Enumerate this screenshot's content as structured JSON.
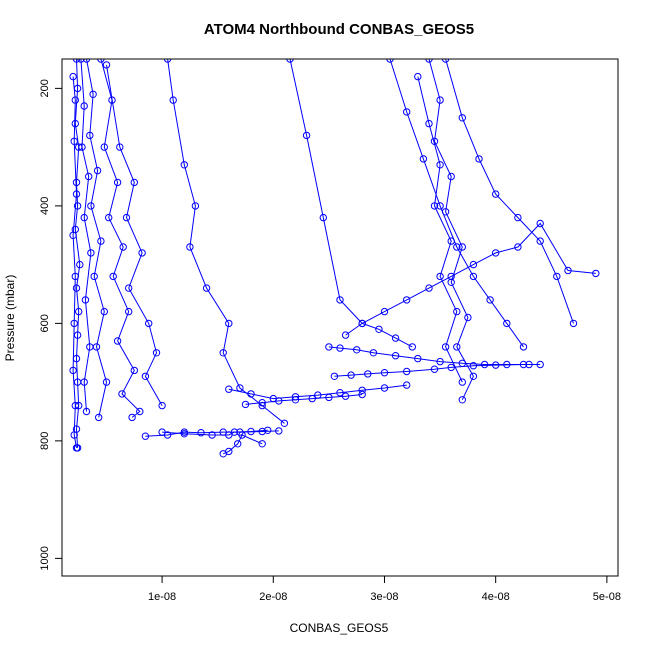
{
  "chart_data": {
    "type": "line",
    "title": "ATOM4 Northbound CONBAS_GEOS5",
    "xlabel": "CONBAS_GEOS5",
    "ylabel": "Pressure (mbar)",
    "xlim": [
      1e-09,
      5.1e-08
    ],
    "ylim": [
      1030,
      150
    ],
    "y_reversed": true,
    "x_ticks": [
      {
        "value": 1e-08,
        "label": "1e-08"
      },
      {
        "value": 2e-08,
        "label": "2e-08"
      },
      {
        "value": 3e-08,
        "label": "3e-08"
      },
      {
        "value": 4e-08,
        "label": "4e-08"
      },
      {
        "value": 5e-08,
        "label": "5e-08"
      }
    ],
    "y_ticks": [
      {
        "value": 200,
        "label": "200"
      },
      {
        "value": 400,
        "label": "400"
      },
      {
        "value": 600,
        "label": "600"
      },
      {
        "value": 800,
        "label": "800"
      },
      {
        "value": 1000,
        "label": "1000"
      }
    ],
    "grid": false,
    "legend": "none",
    "series_color": "#0000ff",
    "marker": "open-circle",
    "series": [
      {
        "name": "",
        "x": [
          2.3e-09,
          2.4e-09,
          2.2e-09,
          2.5e-09,
          2.3e-09,
          2.4e-09,
          2.2e-09,
          2.6e-09,
          2.3e-09,
          2.5e-09,
          2.4e-09,
          2.3e-09,
          2.4e-09,
          2.5e-09,
          2.3e-09,
          2.4e-09
        ],
        "y": [
          150,
          200,
          260,
          300,
          360,
          400,
          440,
          500,
          540,
          580,
          620,
          660,
          700,
          740,
          780,
          812
        ]
      },
      {
        "name": "",
        "x": [
          2e-09,
          2.2e-09,
          2.1e-09,
          2.3e-09,
          2e-09,
          2.2e-09,
          2.1e-09,
          2e-09,
          2.2e-09,
          2.1e-09,
          2.3e-09
        ],
        "y": [
          180,
          220,
          290,
          380,
          450,
          520,
          600,
          680,
          740,
          790,
          812
        ]
      },
      {
        "name": "",
        "x": [
          2.7e-09,
          3e-09,
          2.8e-09,
          3.4e-09,
          3e-09,
          3.6e-09,
          3.1e-09,
          3.5e-09,
          3e-09,
          3.2e-09
        ],
        "y": [
          150,
          230,
          300,
          350,
          420,
          480,
          560,
          640,
          700,
          750
        ]
      },
      {
        "name": "",
        "x": [
          3.2e-09,
          3.8e-09,
          3.5e-09,
          4.2e-09,
          3.6e-09,
          4.5e-09,
          3.9e-09,
          4.8e-09,
          4.1e-09,
          5e-09,
          4.3e-09
        ],
        "y": [
          150,
          210,
          280,
          340,
          400,
          460,
          520,
          580,
          640,
          700,
          760
        ]
      },
      {
        "name": "",
        "x": [
          4.5e-09,
          5.5e-09,
          4.8e-09,
          6e-09,
          5.2e-09,
          6.5e-09,
          5.6e-09,
          7e-09,
          6e-09,
          7.5e-09,
          6.4e-09,
          8e-09,
          7.3e-09
        ],
        "y": [
          150,
          220,
          300,
          360,
          420,
          470,
          520,
          580,
          630,
          680,
          720,
          750,
          760
        ]
      },
      {
        "name": "",
        "x": [
          5e-09,
          6.2e-09,
          7.5e-09,
          6.8e-09,
          8.2e-09,
          7e-09,
          8.8e-09,
          9.5e-09,
          8.5e-09,
          1e-08
        ],
        "y": [
          160,
          300,
          360,
          420,
          480,
          540,
          600,
          650,
          690,
          740
        ]
      },
      {
        "name": "",
        "x": [
          1.05e-08,
          1.1e-08,
          1.2e-08,
          1.3e-08,
          1.25e-08,
          1.4e-08,
          1.6e-08,
          1.55e-08,
          1.7e-08,
          1.9e-08,
          2.1e-08
        ],
        "y": [
          150,
          220,
          330,
          400,
          470,
          540,
          600,
          650,
          710,
          740,
          770
        ]
      },
      {
        "name": "",
        "x": [
          8.5e-09,
          1.05e-08,
          1.2e-08,
          1.35e-08,
          1.55e-08,
          1.7e-08,
          1.9e-08,
          2.05e-08
        ],
        "y": [
          792,
          790,
          785,
          786,
          785,
          785,
          784,
          783
        ]
      },
      {
        "name": "",
        "x": [
          1e-08,
          1.2e-08,
          1.45e-08,
          1.6e-08,
          1.65e-08,
          1.8e-08,
          1.95e-08
        ],
        "y": [
          785,
          788,
          790,
          790,
          785,
          784,
          782
        ]
      },
      {
        "name": "",
        "x": [
          1.55e-08,
          1.6e-08,
          1.68e-08,
          1.72e-08,
          1.9e-08
        ],
        "y": [
          822,
          818,
          805,
          790,
          805
        ]
      },
      {
        "name": "",
        "x": [
          1.6e-08,
          1.8e-08,
          2e-08,
          2.2e-08,
          2.4e-08,
          2.6e-08,
          2.8e-08,
          3e-08,
          3.2e-08
        ],
        "y": [
          712,
          720,
          728,
          725,
          722,
          718,
          714,
          710,
          705
        ]
      },
      {
        "name": "",
        "x": [
          1.75e-08,
          1.9e-08,
          2.05e-08,
          2.2e-08,
          2.35e-08,
          2.5e-08,
          2.65e-08,
          2.8e-08
        ],
        "y": [
          738,
          735,
          732,
          730,
          728,
          726,
          724,
          721
        ]
      },
      {
        "name": "",
        "x": [
          2.5e-08,
          2.6e-08,
          2.75e-08,
          2.9e-08,
          3.1e-08,
          3.3e-08,
          3.5e-08,
          3.7e-08,
          3.9e-08,
          4.1e-08,
          4.3e-08,
          4.4e-08
        ],
        "y": [
          640,
          642,
          645,
          650,
          655,
          660,
          665,
          668,
          670,
          670,
          670,
          670
        ]
      },
      {
        "name": "",
        "x": [
          2.55e-08,
          2.7e-08,
          2.85e-08,
          3e-08,
          3.2e-08,
          3.45e-08,
          3.6e-08,
          3.8e-08,
          4e-08,
          4.25e-08
        ],
        "y": [
          690,
          688,
          686,
          684,
          682,
          678,
          675,
          672,
          671,
          670
        ]
      },
      {
        "name": "",
        "x": [
          2.65e-08,
          2.8e-08,
          3e-08,
          3.2e-08,
          3.4e-08,
          3.6e-08,
          3.8e-08,
          4e-08,
          4.2e-08,
          4.4e-08,
          4.65e-08,
          4.9e-08
        ],
        "y": [
          620,
          600,
          580,
          560,
          540,
          520,
          500,
          480,
          470,
          430,
          510,
          515
        ]
      },
      {
        "name": "",
        "x": [
          3.05e-08,
          3.2e-08,
          3.35e-08,
          3.5e-08,
          3.65e-08,
          3.8e-08,
          3.95e-08,
          4.1e-08,
          4.25e-08
        ],
        "y": [
          150,
          240,
          320,
          400,
          470,
          520,
          560,
          600,
          640
        ]
      },
      {
        "name": "",
        "x": [
          3.4e-08,
          3.5e-08,
          3.45e-08,
          3.6e-08,
          3.55e-08,
          3.7e-08,
          3.6e-08,
          3.75e-08,
          3.65e-08,
          3.8e-08,
          3.7e-08
        ],
        "y": [
          150,
          220,
          290,
          350,
          410,
          470,
          530,
          590,
          640,
          690,
          730
        ]
      },
      {
        "name": "",
        "x": [
          3.3e-08,
          3.4e-08,
          3.5e-08,
          3.45e-08,
          3.6e-08,
          3.5e-08,
          3.65e-08,
          3.55e-08,
          3.7e-08
        ],
        "y": [
          180,
          260,
          330,
          400,
          460,
          520,
          580,
          640,
          700
        ]
      },
      {
        "name": "",
        "x": [
          3.55e-08,
          3.7e-08,
          3.85e-08,
          4e-08,
          4.2e-08,
          4.4e-08,
          4.55e-08,
          4.7e-08
        ],
        "y": [
          150,
          250,
          320,
          380,
          420,
          460,
          520,
          600
        ]
      },
      {
        "name": "",
        "x": [
          2.15e-08,
          2.3e-08,
          2.45e-08,
          2.6e-08,
          2.8e-08,
          2.95e-08,
          3.1e-08,
          3.25e-08
        ],
        "y": [
          150,
          280,
          420,
          560,
          600,
          610,
          625,
          640
        ]
      }
    ]
  }
}
